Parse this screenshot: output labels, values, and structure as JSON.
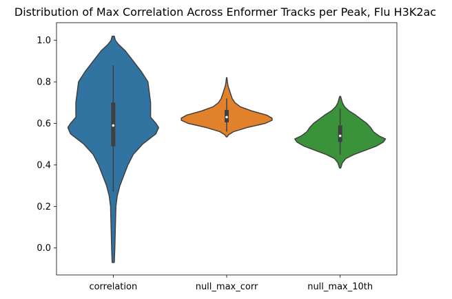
{
  "chart_data": {
    "type": "violin",
    "title": "Distribution of Max Correlation Across Enformer Tracks per Peak, Flu H3K2ac",
    "xlabel": "",
    "ylabel": "",
    "categories": [
      "correlation",
      "null_max_corr",
      "null_max_10th"
    ],
    "ylim": [
      -0.13,
      1.085
    ],
    "yticks": [
      0.0,
      0.2,
      0.4,
      0.6,
      0.8,
      1.0
    ],
    "ytick_labels": [
      "0.0",
      "0.2",
      "0.4",
      "0.6",
      "0.8",
      "1.0"
    ],
    "grid": false,
    "series": [
      {
        "category": "correlation",
        "color": "#3274a1",
        "min": -0.07,
        "max": 1.02,
        "q1": 0.49,
        "median": 0.59,
        "q3": 0.7,
        "whisker_low": 0.27,
        "whisker_high": 0.88,
        "density": [
          [
            -0.07,
            0.004
          ],
          [
            0.0,
            0.006
          ],
          [
            0.1,
            0.008
          ],
          [
            0.2,
            0.01
          ],
          [
            0.25,
            0.015
          ],
          [
            0.3,
            0.025
          ],
          [
            0.35,
            0.04
          ],
          [
            0.4,
            0.055
          ],
          [
            0.45,
            0.075
          ],
          [
            0.5,
            0.11
          ],
          [
            0.55,
            0.16
          ],
          [
            0.58,
            0.17
          ],
          [
            0.6,
            0.16
          ],
          [
            0.63,
            0.14
          ],
          [
            0.66,
            0.14
          ],
          [
            0.7,
            0.14
          ],
          [
            0.75,
            0.135
          ],
          [
            0.8,
            0.13
          ],
          [
            0.85,
            0.105
          ],
          [
            0.9,
            0.075
          ],
          [
            0.95,
            0.045
          ],
          [
            0.98,
            0.02
          ],
          [
            1.0,
            0.008
          ],
          [
            1.02,
            0.004
          ]
        ]
      },
      {
        "category": "null_max_corr",
        "color": "#e1812c",
        "min": 0.535,
        "max": 0.82,
        "q1": 0.605,
        "median": 0.63,
        "q3": 0.665,
        "whisker_low": 0.56,
        "whisker_high": 0.72,
        "density": [
          [
            0.535,
            0.01
          ],
          [
            0.545,
            0.04
          ],
          [
            0.56,
            0.15
          ],
          [
            0.58,
            0.45
          ],
          [
            0.6,
            0.85
          ],
          [
            0.615,
            1.0
          ],
          [
            0.625,
            1.0
          ],
          [
            0.64,
            0.88
          ],
          [
            0.66,
            0.55
          ],
          [
            0.68,
            0.3
          ],
          [
            0.7,
            0.18
          ],
          [
            0.72,
            0.12
          ],
          [
            0.74,
            0.09
          ],
          [
            0.76,
            0.06
          ],
          [
            0.78,
            0.03
          ],
          [
            0.8,
            0.015
          ],
          [
            0.82,
            0.005
          ]
        ]
      },
      {
        "category": "null_max_10th",
        "color": "#3a923a",
        "min": 0.385,
        "max": 0.73,
        "q1": 0.51,
        "median": 0.54,
        "q3": 0.59,
        "whisker_low": 0.45,
        "whisker_high": 0.67,
        "density": [
          [
            0.385,
            0.01
          ],
          [
            0.41,
            0.04
          ],
          [
            0.43,
            0.1
          ],
          [
            0.45,
            0.25
          ],
          [
            0.47,
            0.45
          ],
          [
            0.49,
            0.65
          ],
          [
            0.51,
            0.78
          ],
          [
            0.525,
            0.82
          ],
          [
            0.54,
            0.7
          ],
          [
            0.56,
            0.6
          ],
          [
            0.58,
            0.55
          ],
          [
            0.6,
            0.48
          ],
          [
            0.62,
            0.38
          ],
          [
            0.64,
            0.28
          ],
          [
            0.66,
            0.16
          ],
          [
            0.68,
            0.08
          ],
          [
            0.7,
            0.04
          ],
          [
            0.73,
            0.008
          ]
        ]
      }
    ]
  }
}
